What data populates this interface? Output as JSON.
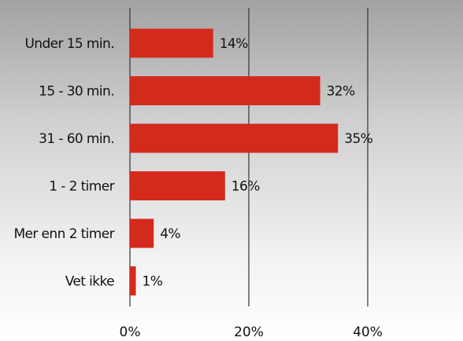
{
  "chart_data": {
    "type": "bar",
    "orientation": "horizontal",
    "categories": [
      "Under 15 min.",
      "15 - 30 min.",
      "31 - 60 min.",
      "1 - 2 timer",
      "Mer enn 2 timer",
      "Vet ikke"
    ],
    "values": [
      14,
      32,
      35,
      16,
      4,
      1
    ],
    "data_labels": [
      "14%",
      "32%",
      "35%",
      "16%",
      "4%",
      "1%"
    ],
    "xlim": [
      0,
      57
    ],
    "x_ticks": [
      0,
      20,
      40
    ],
    "x_tick_labels": [
      "0%",
      "20%",
      "40%"
    ],
    "grid": true,
    "legend": "none",
    "colors": {
      "bar": "#d42a1e",
      "gridline": "#333333"
    }
  }
}
